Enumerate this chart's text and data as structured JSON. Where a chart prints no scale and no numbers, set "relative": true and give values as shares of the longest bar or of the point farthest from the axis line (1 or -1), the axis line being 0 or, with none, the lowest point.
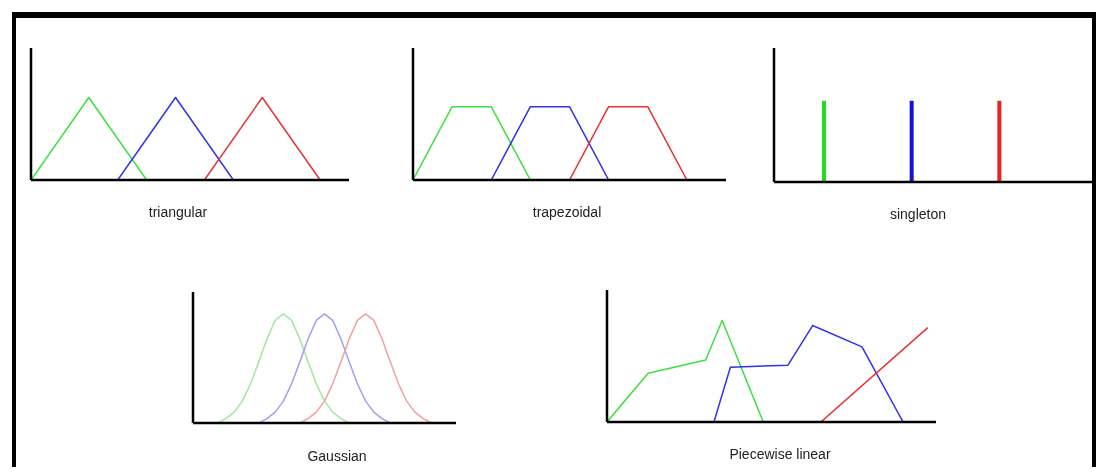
{
  "chart_data": [
    {
      "type": "line",
      "relative": true,
      "xlabel": "triangular",
      "categories": [
        null,
        null,
        null,
        null,
        null,
        null,
        null,
        null,
        null,
        null,
        null,
        null
      ],
      "series": [
        {
          "color": "#3ee03e",
          "values": [
            0,
            null,
            1,
            null,
            0,
            null,
            null,
            null,
            null,
            null,
            null,
            null
          ]
        },
        {
          "color": "#3232e6",
          "values": [
            null,
            null,
            null,
            0,
            null,
            1,
            null,
            0,
            null,
            null,
            null,
            null
          ]
        },
        {
          "color": "#e63232",
          "values": [
            null,
            null,
            null,
            null,
            null,
            null,
            0,
            null,
            1,
            null,
            0,
            null
          ]
        }
      ]
    },
    {
      "type": "line",
      "relative": true,
      "xlabel": "trapezoidal",
      "categories": [
        null,
        null,
        null,
        null,
        null,
        null,
        null,
        null,
        null
      ],
      "series": [
        {
          "color": "#3ee03e",
          "values": [
            0,
            1,
            1,
            0,
            null,
            null,
            null,
            null,
            null
          ]
        },
        {
          "color": "#3232e6",
          "values": [
            null,
            null,
            0,
            1,
            1,
            0,
            null,
            null,
            null
          ]
        },
        {
          "color": "#e63232",
          "values": [
            null,
            null,
            null,
            null,
            0,
            1,
            1,
            0,
            null
          ]
        }
      ]
    },
    {
      "type": "bar",
      "relative": true,
      "xlabel": "singleton",
      "categories": [
        null,
        null,
        null
      ],
      "values": [
        1,
        1,
        1
      ],
      "colors": [
        "#22dd22",
        "#1010e0",
        "#ee2020"
      ]
    },
    {
      "type": "line",
      "relative": true,
      "xlabel": "Gaussian",
      "categories": [
        null,
        null,
        null,
        null,
        null,
        null,
        null,
        null,
        null,
        null,
        null,
        null,
        null,
        null,
        null,
        null,
        null,
        null,
        null,
        null,
        null,
        null,
        null,
        null,
        null,
        null,
        null,
        null,
        null,
        null,
        null,
        null,
        null
      ],
      "series": [
        {
          "color": "#9ee89e",
          "values": [
            null,
            null,
            null,
            0,
            0.04,
            0.1,
            0.2,
            0.36,
            0.56,
            0.77,
            0.94,
            1,
            0.94,
            0.77,
            0.56,
            0.36,
            0.2,
            0.1,
            0.04,
            0,
            null,
            null,
            null,
            null,
            null,
            null,
            null,
            null,
            null,
            null,
            null,
            null,
            null
          ]
        },
        {
          "color": "#a0a0f0",
          "values": [
            null,
            null,
            null,
            null,
            null,
            null,
            null,
            null,
            0,
            0.04,
            0.1,
            0.2,
            0.36,
            0.56,
            0.77,
            0.94,
            1,
            0.94,
            0.77,
            0.56,
            0.36,
            0.2,
            0.1,
            0.04,
            0,
            null,
            null,
            null,
            null,
            null,
            null,
            null,
            null
          ]
        },
        {
          "color": "#f0a0a0",
          "values": [
            null,
            null,
            null,
            null,
            null,
            null,
            null,
            null,
            null,
            null,
            null,
            null,
            null,
            0,
            0.04,
            0.1,
            0.2,
            0.36,
            0.56,
            0.77,
            0.94,
            1,
            0.94,
            0.77,
            0.56,
            0.36,
            0.2,
            0.1,
            0.04,
            0,
            null,
            null,
            null
          ]
        }
      ]
    },
    {
      "type": "line",
      "relative": true,
      "xlabel": "Piecewise linear",
      "categories": [
        null,
        null,
        null,
        null,
        null,
        null,
        null,
        null,
        null,
        null,
        null,
        null,
        null,
        null,
        null,
        null,
        null,
        null,
        null,
        null,
        null,
        null,
        null,
        null,
        null,
        null,
        null,
        null,
        null,
        null,
        null,
        null,
        null,
        null,
        null,
        null,
        null,
        null,
        null,
        null,
        null
      ],
      "series": [
        {
          "color": "#3ee03e",
          "values": [
            0,
            null,
            null,
            null,
            null,
            0.48,
            null,
            null,
            null,
            null,
            null,
            null,
            0.61,
            null,
            1,
            null,
            null,
            null,
            null,
            0,
            null,
            null,
            null,
            null,
            null,
            null,
            null,
            null,
            null,
            null,
            null,
            null,
            null,
            null,
            null,
            null,
            null,
            null,
            null,
            null,
            null
          ]
        },
        {
          "color": "#3232e6",
          "values": [
            null,
            null,
            null,
            null,
            null,
            null,
            null,
            null,
            null,
            null,
            null,
            null,
            null,
            0,
            null,
            0.54,
            null,
            null,
            null,
            null,
            null,
            null,
            0.56,
            null,
            null,
            0.95,
            null,
            null,
            null,
            null,
            null,
            0.74,
            null,
            null,
            null,
            null,
            0,
            null,
            null,
            null,
            null
          ]
        },
        {
          "color": "#e63232",
          "values": [
            null,
            null,
            null,
            null,
            null,
            null,
            null,
            null,
            null,
            null,
            null,
            null,
            null,
            null,
            null,
            null,
            null,
            null,
            null,
            null,
            null,
            null,
            null,
            null,
            null,
            null,
            0,
            null,
            null,
            null,
            null,
            null,
            null,
            null,
            null,
            null,
            null,
            null,
            null,
            0.93,
            null
          ]
        }
      ]
    }
  ]
}
